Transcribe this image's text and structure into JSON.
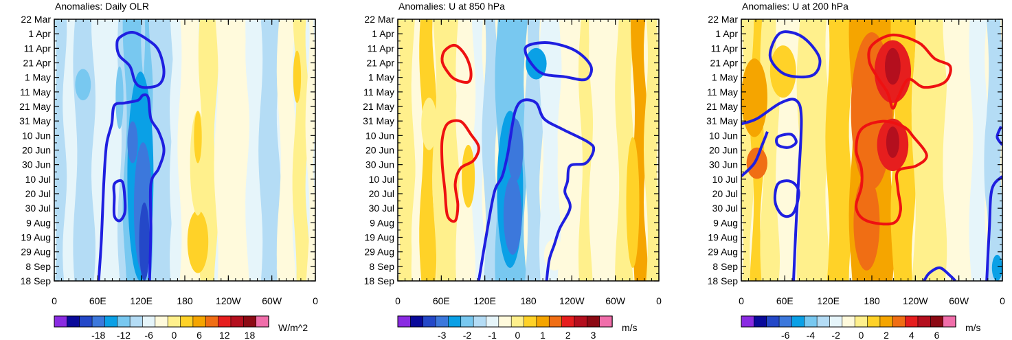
{
  "chart_data": [
    {
      "type": "heatmap",
      "title": "Anomalies: Daily OLR",
      "ylabels": [
        "22 Mar",
        "1 Apr",
        "11 Apr",
        "21 Apr",
        "1 May",
        "11 May",
        "21 May",
        "31 May",
        "10 Jun",
        "20 Jun",
        "30 Jun",
        "10 Jul",
        "20 Jul",
        "30 Jul",
        "9 Aug",
        "19 Aug",
        "29 Aug",
        "8 Sep",
        "18 Sep"
      ],
      "xlabels": [
        "0",
        "60E",
        "120E",
        "180",
        "120W",
        "60W",
        "0"
      ],
      "xlim": [
        0,
        360
      ],
      "colorbar_labels": [
        "-18",
        "-12",
        "-6",
        "0",
        "6",
        "12",
        "18"
      ],
      "units": "W/m^2",
      "contour_color": "#1f1fe0"
    },
    {
      "type": "heatmap",
      "title": "Anomalies: U at 850 hPa",
      "ylabels": [
        "22 Mar",
        "1 Apr",
        "11 Apr",
        "21 Apr",
        "1 May",
        "11 May",
        "21 May",
        "31 May",
        "10 Jun",
        "20 Jun",
        "30 Jun",
        "10 Jul",
        "20 Jul",
        "30 Jul",
        "9 Aug",
        "19 Aug",
        "29 Aug",
        "8 Sep",
        "18 Sep"
      ],
      "xlabels": [
        "0",
        "60E",
        "120E",
        "180",
        "120W",
        "60W",
        "0"
      ],
      "xlim": [
        0,
        360
      ],
      "colorbar_labels": [
        "-3",
        "-2",
        "-1",
        "0",
        "1",
        "2",
        "3"
      ],
      "units": "m/s",
      "contour_colors": [
        "#1f1fe0",
        "#ee1111"
      ]
    },
    {
      "type": "heatmap",
      "title": "Anomalies: U at 200 hPa",
      "ylabels": [
        "22 Mar",
        "1 Apr",
        "11 Apr",
        "21 Apr",
        "1 May",
        "11 May",
        "21 May",
        "31 May",
        "10 Jun",
        "20 Jun",
        "30 Jun",
        "10 Jul",
        "20 Jul",
        "30 Jul",
        "9 Aug",
        "19 Aug",
        "29 Aug",
        "8 Sep",
        "18 Sep"
      ],
      "xlabels": [
        "0",
        "60E",
        "120E",
        "180",
        "120W",
        "60W",
        "0"
      ],
      "xlim": [
        0,
        360
      ],
      "colorbar_labels": [
        "-6",
        "-4",
        "-2",
        "0",
        "2",
        "4",
        "6"
      ],
      "units": "m/s",
      "contour_colors": [
        "#1f1fe0",
        "#ee1111"
      ]
    }
  ],
  "colors": {
    "palette": [
      "#8a2be2",
      "#0a0a9a",
      "#2448c8",
      "#3c78dc",
      "#0aa0e6",
      "#78c8f0",
      "#b4dcf5",
      "#e6f5fa",
      "#fffadc",
      "#fff08c",
      "#ffd228",
      "#f5a500",
      "#f06e14",
      "#e61e1e",
      "#b40f1e",
      "#8c0a14",
      "#f06eaa"
    ]
  }
}
